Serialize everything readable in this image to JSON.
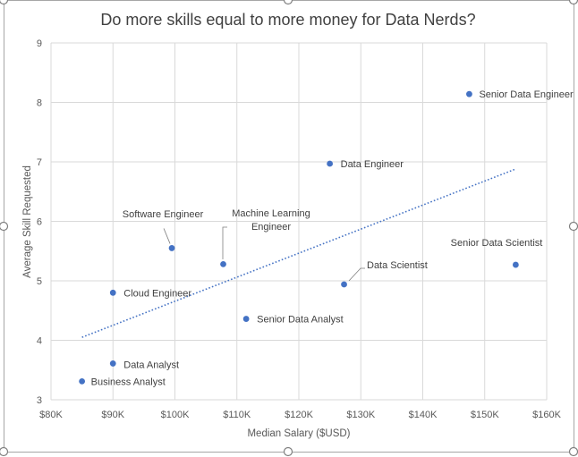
{
  "chart_data": {
    "type": "scatter",
    "title": "Do more skills equal to more money for Data Nerds?",
    "xlabel": "Median Salary ($USD)",
    "ylabel": "Average Skill Requested",
    "xlim": [
      80000,
      160000
    ],
    "ylim": [
      3,
      9
    ],
    "x_ticks": [
      80000,
      90000,
      100000,
      110000,
      120000,
      130000,
      140000,
      150000,
      160000
    ],
    "x_tick_labels": [
      "$80K",
      "$90K",
      "$100K",
      "$110K",
      "$120K",
      "$130K",
      "$140K",
      "$150K",
      "$160K"
    ],
    "y_ticks": [
      3,
      4,
      5,
      6,
      7,
      8,
      9
    ],
    "y_tick_labels": [
      "3",
      "4",
      "5",
      "6",
      "7",
      "8",
      "9"
    ],
    "grid": true,
    "marker_color": "#4472c4",
    "trendline": {
      "type": "linear",
      "style": "dotted",
      "color": "#4472c4",
      "x": [
        85000,
        155000
      ],
      "y": [
        4.05,
        6.88
      ]
    },
    "points": [
      {
        "label": "Business Analyst",
        "x": 85000,
        "y": 3.31
      },
      {
        "label": "Data Analyst",
        "x": 90000,
        "y": 3.61
      },
      {
        "label": "Cloud Engineer",
        "x": 90000,
        "y": 4.8
      },
      {
        "label": "Software Engineer",
        "x": 99500,
        "y": 5.55
      },
      {
        "label": "Machine Learning Engineer",
        "label_lines": [
          "Machine Learning",
          "Engineer"
        ],
        "x": 107800,
        "y": 5.28
      },
      {
        "label": "Senior Data Analyst",
        "x": 111500,
        "y": 4.36
      },
      {
        "label": "Data Engineer",
        "x": 125000,
        "y": 6.97
      },
      {
        "label": "Data Scientist",
        "x": 127300,
        "y": 4.94
      },
      {
        "label": "Senior Data Engineer",
        "x": 147500,
        "y": 8.14
      },
      {
        "label": "Senior Data Scientist",
        "x": 155000,
        "y": 5.27
      }
    ]
  }
}
